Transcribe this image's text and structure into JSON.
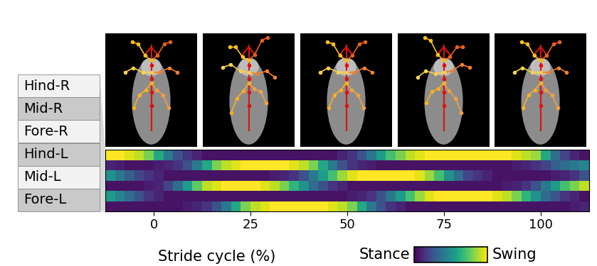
{
  "chart_data": {
    "type": "heatmap",
    "xlabel": "Stride cycle (%)",
    "rows": [
      "Hind-R",
      "Mid-R",
      "Fore-R",
      "Hind-L",
      "Mid-L",
      "Fore-L"
    ],
    "x_edges": [
      -12.5,
      -10,
      -7.5,
      -5,
      -2.5,
      0,
      2.5,
      5,
      7.5,
      10,
      12.5,
      15,
      17.5,
      20,
      22.5,
      25,
      27.5,
      30,
      32.5,
      35,
      37.5,
      40,
      42.5,
      45,
      47.5,
      50,
      52.5,
      55,
      57.5,
      60,
      62.5,
      65,
      67.5,
      70,
      72.5,
      75,
      77.5,
      80,
      82.5,
      85,
      87.5,
      90,
      92.5,
      95,
      97.5,
      100,
      102.5,
      105,
      107.5,
      110,
      112.5
    ],
    "xlim": [
      -12.5,
      112.5
    ],
    "xticks": [
      0,
      25,
      50,
      75,
      100
    ],
    "tick_labels": "x",
    "cells": [
      [
        1.0,
        1.0,
        0.95,
        0.9,
        0.8,
        0.6,
        0.4,
        0.25,
        0.15,
        0.1,
        0.05,
        0.05,
        0.05,
        0.05,
        0.05,
        0.05,
        0.05,
        0.05,
        0.05,
        0.05,
        0.05,
        0.05,
        0.05,
        0.05,
        0.1,
        0.15,
        0.25,
        0.4,
        0.55,
        0.7,
        0.8,
        0.9,
        0.95,
        1.0,
        1.0,
        1.0,
        1.0,
        1.0,
        1.0,
        1.0,
        1.0,
        1.0,
        0.95,
        0.9,
        0.85,
        0.6,
        0.35,
        0.2,
        0.1,
        0.05
      ],
      [
        0.1,
        0.08,
        0.05,
        0.05,
        0.05,
        0.08,
        0.1,
        0.15,
        0.25,
        0.4,
        0.6,
        0.8,
        0.9,
        0.95,
        1.0,
        1.0,
        1.0,
        1.0,
        1.0,
        0.95,
        0.9,
        0.8,
        0.6,
        0.4,
        0.25,
        0.15,
        0.1,
        0.08,
        0.05,
        0.05,
        0.05,
        0.05,
        0.05,
        0.05,
        0.05,
        0.05,
        0.05,
        0.05,
        0.05,
        0.05,
        0.05,
        0.05,
        0.08,
        0.1,
        0.15,
        0.2,
        0.3,
        0.35,
        0.4,
        0.45
      ],
      [
        0.5,
        0.4,
        0.3,
        0.2,
        0.15,
        0.1,
        0.05,
        0.05,
        0.05,
        0.05,
        0.05,
        0.05,
        0.05,
        0.05,
        0.05,
        0.05,
        0.05,
        0.08,
        0.1,
        0.15,
        0.25,
        0.4,
        0.55,
        0.7,
        0.85,
        0.95,
        1.0,
        1.0,
        1.0,
        1.0,
        1.0,
        1.0,
        0.95,
        0.85,
        0.7,
        0.5,
        0.35,
        0.2,
        0.15,
        0.1,
        0.05,
        0.05,
        0.05,
        0.05,
        0.05,
        0.05,
        0.08,
        0.1,
        0.15,
        0.25
      ],
      [
        0.05,
        0.05,
        0.05,
        0.05,
        0.08,
        0.1,
        0.2,
        0.35,
        0.55,
        0.75,
        0.9,
        0.95,
        1.0,
        1.0,
        1.0,
        1.0,
        0.95,
        0.9,
        0.8,
        0.65,
        0.5,
        0.35,
        0.25,
        0.15,
        0.1,
        0.05,
        0.05,
        0.05,
        0.05,
        0.05,
        0.05,
        0.05,
        0.05,
        0.05,
        0.05,
        0.05,
        0.05,
        0.05,
        0.05,
        0.05,
        0.05,
        0.08,
        0.1,
        0.15,
        0.25,
        0.4,
        0.55,
        0.7,
        0.8,
        0.9
      ],
      [
        0.55,
        0.45,
        0.35,
        0.25,
        0.15,
        0.1,
        0.05,
        0.05,
        0.05,
        0.05,
        0.05,
        0.05,
        0.05,
        0.05,
        0.05,
        0.05,
        0.05,
        0.05,
        0.05,
        0.05,
        0.05,
        0.05,
        0.05,
        0.05,
        0.05,
        0.08,
        0.1,
        0.15,
        0.25,
        0.4,
        0.55,
        0.7,
        0.85,
        0.95,
        1.0,
        1.0,
        1.0,
        1.0,
        1.0,
        1.0,
        0.95,
        0.9,
        0.8,
        0.65,
        0.5,
        0.35,
        0.25,
        0.15,
        0.1,
        0.05
      ],
      [
        0.05,
        0.05,
        0.05,
        0.05,
        0.05,
        0.05,
        0.05,
        0.05,
        0.08,
        0.1,
        0.15,
        0.25,
        0.4,
        0.6,
        0.8,
        0.9,
        0.95,
        1.0,
        1.0,
        1.0,
        1.0,
        1.0,
        1.0,
        0.95,
        0.9,
        0.8,
        0.6,
        0.4,
        0.25,
        0.15,
        0.1,
        0.05,
        0.05,
        0.05,
        0.05,
        0.05,
        0.05,
        0.05,
        0.05,
        0.05,
        0.05,
        0.05,
        0.05,
        0.05,
        0.05,
        0.05,
        0.05,
        0.05,
        0.08,
        0.1
      ]
    ],
    "colorbar_range": [
      0,
      1
    ],
    "colorbar_labels": [
      "Stance",
      "Swing"
    ]
  }
}
